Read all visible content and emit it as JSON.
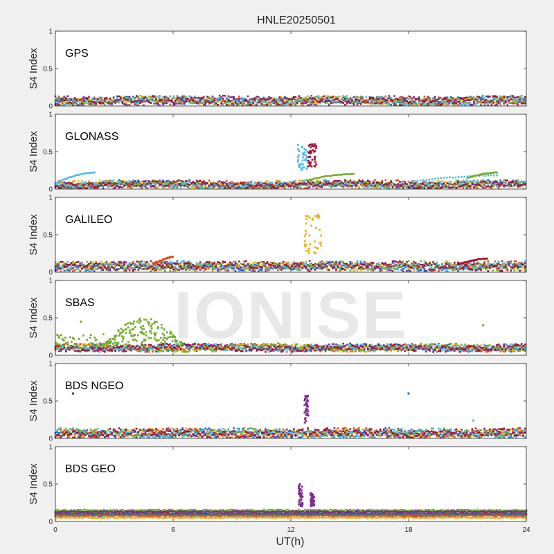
{
  "figure": {
    "title": "HNLE20250501",
    "watermark": "IONISE",
    "xlabel": "UT(h)",
    "ylabel": "S4 Index"
  },
  "chart_data": {
    "type": "scatter",
    "title": "HNLE20250501",
    "xlabel": "UT(h)",
    "ylabel": "S4 Index",
    "xlim": [
      0,
      24
    ],
    "ylim": [
      0,
      1
    ],
    "xticks": [
      "0",
      "6",
      "12",
      "18",
      "24"
    ],
    "yticks": [
      "0",
      "0.5",
      "1"
    ],
    "grid": false,
    "colors": [
      "#0072BD",
      "#D95319",
      "#EDB120",
      "#7E2F8E",
      "#77AC30",
      "#4DBEEE",
      "#A2142F"
    ],
    "panels": [
      {
        "label": "GPS",
        "baseline": 0.07,
        "noise": 0.05,
        "features": []
      },
      {
        "label": "GLONASS",
        "baseline": 0.06,
        "noise": 0.04,
        "features": [
          {
            "x": [
              0.0,
              2.0
            ],
            "y": [
              0.08,
              0.22
            ],
            "color": "#4DBEEE",
            "kind": "arc"
          },
          {
            "x": [
              12.3,
              12.9
            ],
            "y": [
              0.25,
              0.6
            ],
            "color": "#4DBEEE",
            "kind": "burst"
          },
          {
            "x": [
              12.9,
              13.3
            ],
            "y": [
              0.3,
              0.6
            ],
            "color": "#A2142F",
            "kind": "burst"
          },
          {
            "x": [
              12.8,
              15.2
            ],
            "y": [
              0.12,
              0.2
            ],
            "color": "#77AC30",
            "kind": "arc"
          },
          {
            "x": [
              18.0,
              22.5
            ],
            "y": [
              0.1,
              0.18
            ],
            "color": "#4DBEEE",
            "kind": "arc"
          },
          {
            "x": [
              21.0,
              22.5
            ],
            "y": [
              0.15,
              0.22
            ],
            "color": "#77AC30",
            "kind": "arc"
          }
        ]
      },
      {
        "label": "GALILEO",
        "baseline": 0.08,
        "noise": 0.05,
        "features": [
          {
            "x": [
              12.7,
              13.6
            ],
            "y": [
              0.25,
              0.78
            ],
            "color": "#EDB120",
            "kind": "burst"
          },
          {
            "x": [
              5.0,
              6.0
            ],
            "y": [
              0.1,
              0.2
            ],
            "color": "#D95319",
            "kind": "arc"
          },
          {
            "x": [
              20.5,
              22.0
            ],
            "y": [
              0.1,
              0.18
            ],
            "color": "#A2142F",
            "kind": "arc"
          }
        ]
      },
      {
        "label": "SBAS",
        "baseline": 0.1,
        "noise": 0.04,
        "features": [
          {
            "x": [
              2.5,
              6.5
            ],
            "y": [
              0.15,
              0.5
            ],
            "color": "#77AC30",
            "kind": "hump"
          },
          {
            "x": [
              0.0,
              2.5
            ],
            "y": [
              0.12,
              0.28
            ],
            "color": "#77AC30",
            "kind": "burst"
          },
          {
            "x": [
              1.3,
              1.3
            ],
            "y": [
              0.45,
              0.45
            ],
            "color": "#77AC30",
            "kind": "point"
          },
          {
            "x": [
              21.8,
              21.8
            ],
            "y": [
              0.4,
              0.4
            ],
            "color": "#77AC30",
            "kind": "point"
          }
        ]
      },
      {
        "label": "BDS NGEO",
        "baseline": 0.07,
        "noise": 0.05,
        "features": [
          {
            "x": [
              12.7,
              12.9
            ],
            "y": [
              0.2,
              0.6
            ],
            "color": "#7E2F8E",
            "kind": "burst"
          },
          {
            "x": [
              18.0,
              18.0
            ],
            "y": [
              0.6,
              0.6
            ],
            "color": "#0072BD",
            "kind": "point"
          },
          {
            "x": [
              21.3,
              21.3
            ],
            "y": [
              0.24,
              0.24
            ],
            "color": "#4DBEEE",
            "kind": "point"
          },
          {
            "x": [
              0.9,
              0.9
            ],
            "y": [
              0.6,
              0.6
            ],
            "color": "#A2142F",
            "kind": "point"
          }
        ]
      },
      {
        "label": "BDS GEO",
        "baseline": 0.1,
        "noise": 0.02,
        "features": [
          {
            "x": [
              12.4,
              12.6
            ],
            "y": [
              0.2,
              0.5
            ],
            "color": "#7E2F8E",
            "kind": "burst"
          },
          {
            "x": [
              13.0,
              13.2
            ],
            "y": [
              0.2,
              0.38
            ],
            "color": "#7E2F8E",
            "kind": "burst"
          }
        ],
        "bands": [
          {
            "y": 0.15,
            "color": "#77AC30"
          },
          {
            "y": 0.13,
            "color": "#7E2F8E"
          },
          {
            "y": 0.1,
            "color": "#0072BD"
          },
          {
            "y": 0.08,
            "color": "#D95319"
          },
          {
            "y": 0.05,
            "color": "#EDB120"
          }
        ]
      }
    ]
  }
}
